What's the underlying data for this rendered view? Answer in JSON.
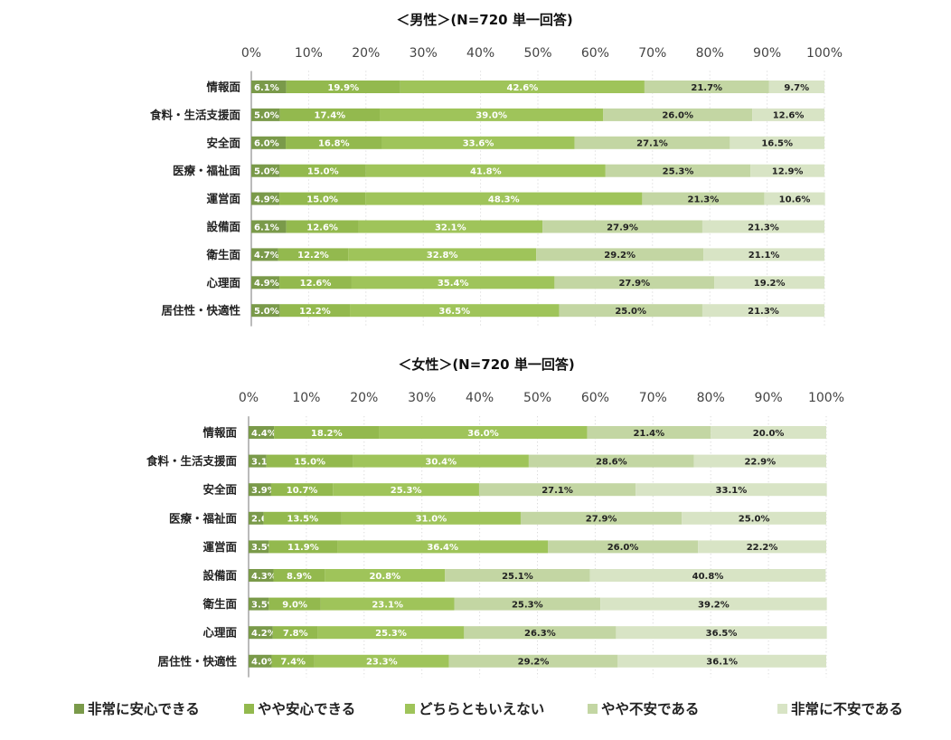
{
  "chart_data": [
    {
      "type": "stacked-bar-horizontal-100",
      "title": "＜男性＞(N=720 単一回答)",
      "xlim": [
        0,
        100
      ],
      "x_ticks": [
        "0%",
        "10%",
        "20%",
        "30%",
        "40%",
        "50%",
        "60%",
        "70%",
        "80%",
        "90%",
        "100%"
      ],
      "categories": [
        "情報面",
        "食料・生活支援面",
        "安全面",
        "医療・福祉面",
        "運営面",
        "設備面",
        "衛生面",
        "心理面",
        "居住性・快適性"
      ],
      "series": [
        {
          "name": "非常に安心できる",
          "values": [
            6.1,
            5.0,
            6.0,
            5.0,
            4.9,
            6.1,
            4.7,
            4.9,
            5.0
          ]
        },
        {
          "name": "やや安心できる",
          "values": [
            19.9,
            17.4,
            16.8,
            15.0,
            15.0,
            12.6,
            12.2,
            12.6,
            12.2
          ]
        },
        {
          "name": "どちらともいえない",
          "values": [
            42.6,
            39.0,
            33.6,
            41.8,
            48.3,
            32.1,
            32.8,
            35.4,
            36.5
          ]
        },
        {
          "name": "やや不安である",
          "values": [
            21.7,
            26.0,
            27.1,
            25.3,
            21.3,
            27.9,
            29.2,
            27.9,
            25.0
          ]
        },
        {
          "name": "非常に不安である",
          "values": [
            9.7,
            12.6,
            16.5,
            12.9,
            10.6,
            21.3,
            21.1,
            19.2,
            21.3
          ]
        }
      ]
    },
    {
      "type": "stacked-bar-horizontal-100",
      "title": "＜女性＞(N=720 単一回答)",
      "xlim": [
        0,
        100
      ],
      "x_ticks": [
        "0%",
        "10%",
        "20%",
        "30%",
        "40%",
        "50%",
        "60%",
        "70%",
        "80%",
        "90%",
        "100%"
      ],
      "categories": [
        "情報面",
        "食料・生活支援面",
        "安全面",
        "医療・福祉面",
        "運営面",
        "設備面",
        "衛生面",
        "心理面",
        "居住性・快適性"
      ],
      "series": [
        {
          "name": "非常に安心できる",
          "values": [
            4.4,
            3.1,
            3.9,
            2.6,
            3.5,
            4.3,
            3.5,
            4.2,
            4.0
          ]
        },
        {
          "name": "やや安心できる",
          "values": [
            18.2,
            15.0,
            10.7,
            13.5,
            11.9,
            8.9,
            9.0,
            7.8,
            7.4
          ]
        },
        {
          "name": "どちらともいえない",
          "values": [
            36.0,
            30.4,
            25.3,
            31.0,
            36.4,
            20.8,
            23.1,
            25.3,
            23.3
          ]
        },
        {
          "name": "やや不安である",
          "values": [
            21.4,
            28.6,
            27.1,
            27.9,
            26.0,
            25.1,
            25.3,
            26.3,
            29.2
          ]
        },
        {
          "name": "非常に不安である",
          "values": [
            20.0,
            22.9,
            33.1,
            25.0,
            22.2,
            40.8,
            39.2,
            36.5,
            36.1
          ]
        }
      ]
    }
  ],
  "legend": {
    "placement": "bottom",
    "items": [
      "非常に安心できる",
      "やや安心できる",
      "どちらともいえない",
      "やや不安である",
      "非常に不安である"
    ],
    "marker": "■"
  },
  "colors": [
    "#7a9a4a",
    "#93b94e",
    "#9fc45a",
    "#c3d6a3",
    "#d8e4c5"
  ],
  "label_colors": [
    "#ffffff",
    "#ffffff",
    "#ffffff",
    "#222222",
    "#222222"
  ]
}
